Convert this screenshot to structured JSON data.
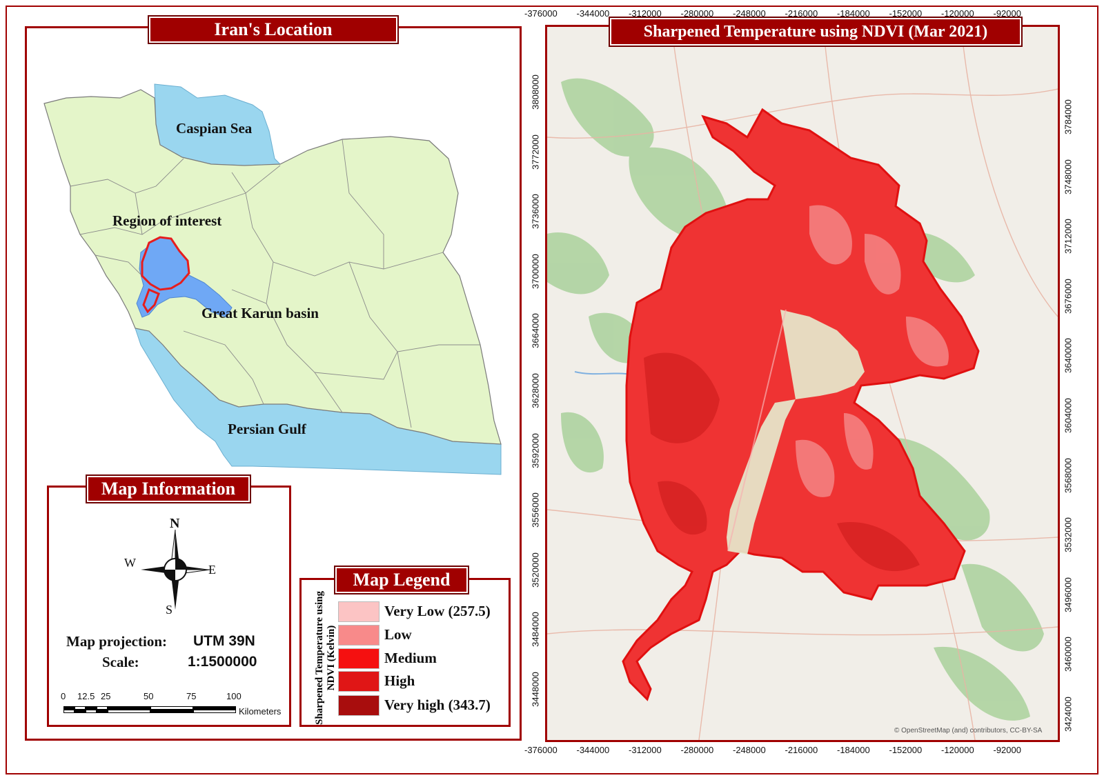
{
  "panels": {
    "location_title": "Iran's Location",
    "info_title": "Map Information",
    "legend_title": "Map Legend",
    "map_title": "Sharpened Temperature using NDVI (Mar 2021)"
  },
  "location_labels": {
    "caspian": "Caspian Sea",
    "region": "Region of interest",
    "karun": "Great Karun basin",
    "gulf": "Persian Gulf"
  },
  "compass": {
    "n": "N",
    "s": "S",
    "e": "E",
    "w": "W"
  },
  "projection": {
    "label": "Map projection:",
    "value": "UTM 39N"
  },
  "scale": {
    "label": "Scale:",
    "value": "1:1500000",
    "ticks": [
      "0",
      "12.5",
      "25",
      "50",
      "75",
      "100"
    ],
    "unit": "Kilometers"
  },
  "legend": {
    "axis_title": "Sharpened Temperature using NDVI (Kelvin)",
    "classes": [
      {
        "label": "Very Low (257.5)",
        "color": "#fcc4c4"
      },
      {
        "label": "Low",
        "color": "#f88a8a"
      },
      {
        "label": "Medium",
        "color": "#f51010"
      },
      {
        "label": "High",
        "color": "#e01616"
      },
      {
        "label": "Very high (343.7)",
        "color": "#a80d0d"
      }
    ]
  },
  "grid": {
    "x_ticks": [
      "-376000",
      "-344000",
      "-312000",
      "-280000",
      "-248000",
      "-216000",
      "-184000",
      "-152000",
      "-120000",
      "-92000"
    ],
    "y_ticks_left": [
      "3808000",
      "3772000",
      "3736000",
      "3700000",
      "3664000",
      "3628000",
      "3592000",
      "3556000",
      "3520000",
      "3484000",
      "3448000"
    ],
    "y_ticks_right": [
      "3784000",
      "3748000",
      "3712000",
      "3676000",
      "3640000",
      "3604000",
      "3568000",
      "3532000",
      "3496000",
      "3460000",
      "3424000"
    ]
  },
  "attribution": "© OpenStreetMap (and) contributors, CC-BY-SA",
  "colors": {
    "accent": "#a00000",
    "land": "#e4f5c9",
    "water": "#9ad6ef",
    "roi": "#6fa8f5",
    "heat": "#ef3333"
  }
}
